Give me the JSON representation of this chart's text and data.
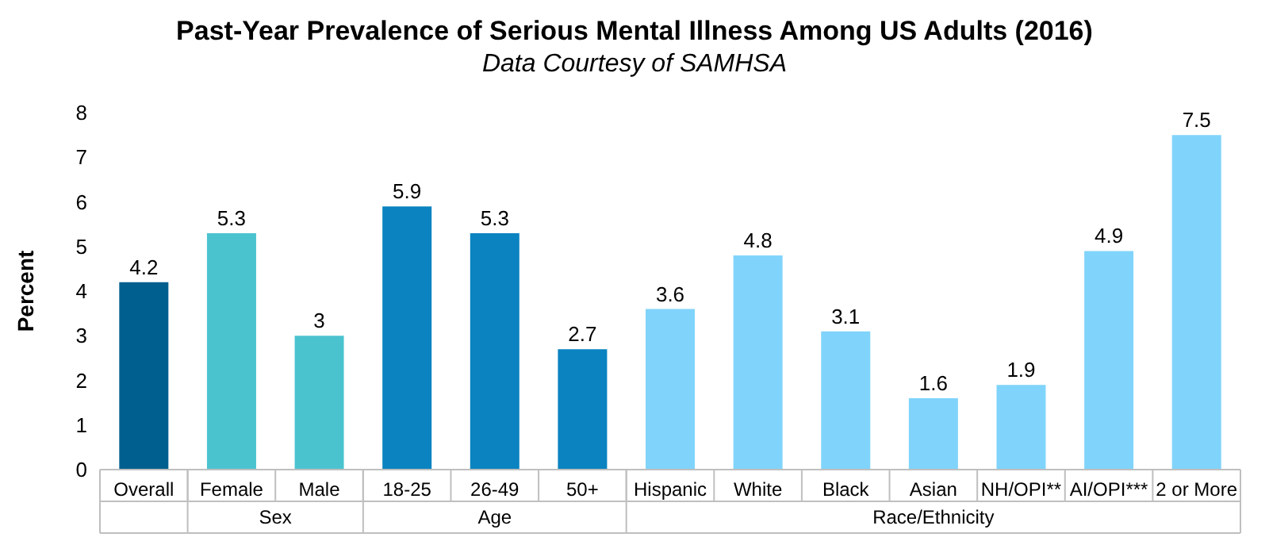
{
  "chart_data": {
    "type": "bar",
    "title": "Past-Year Prevalence of Serious Mental Illness Among US Adults (2016)",
    "subtitle": "Data Courtesy of SAMHSA",
    "ylabel": "Percent",
    "categories": [
      "Overall",
      "Female",
      "Male",
      "18-25",
      "26-49",
      "50+",
      "Hispanic",
      "White",
      "Black",
      "Asian",
      "NH/OPI**",
      "AI/OPI***",
      "2 or More"
    ],
    "values": [
      4.2,
      5.3,
      3,
      5.9,
      5.3,
      2.7,
      3.6,
      4.8,
      3.1,
      1.6,
      1.9,
      4.9,
      7.5
    ],
    "colors": [
      "#005f8f",
      "#4bc3cf",
      "#4bc3cf",
      "#0a83c0",
      "#0a83c0",
      "#0a83c0",
      "#80d4fb",
      "#80d4fb",
      "#80d4fb",
      "#80d4fb",
      "#80d4fb",
      "#80d4fb",
      "#80d4fb"
    ],
    "ylim": [
      0,
      8
    ],
    "yticks": [
      0,
      1,
      2,
      3,
      4,
      5,
      6,
      7,
      8
    ],
    "grid": false,
    "legend": false,
    "data_labels": true,
    "annotations": [
      "Sex",
      "Age",
      "Race/Ethnicity"
    ]
  }
}
